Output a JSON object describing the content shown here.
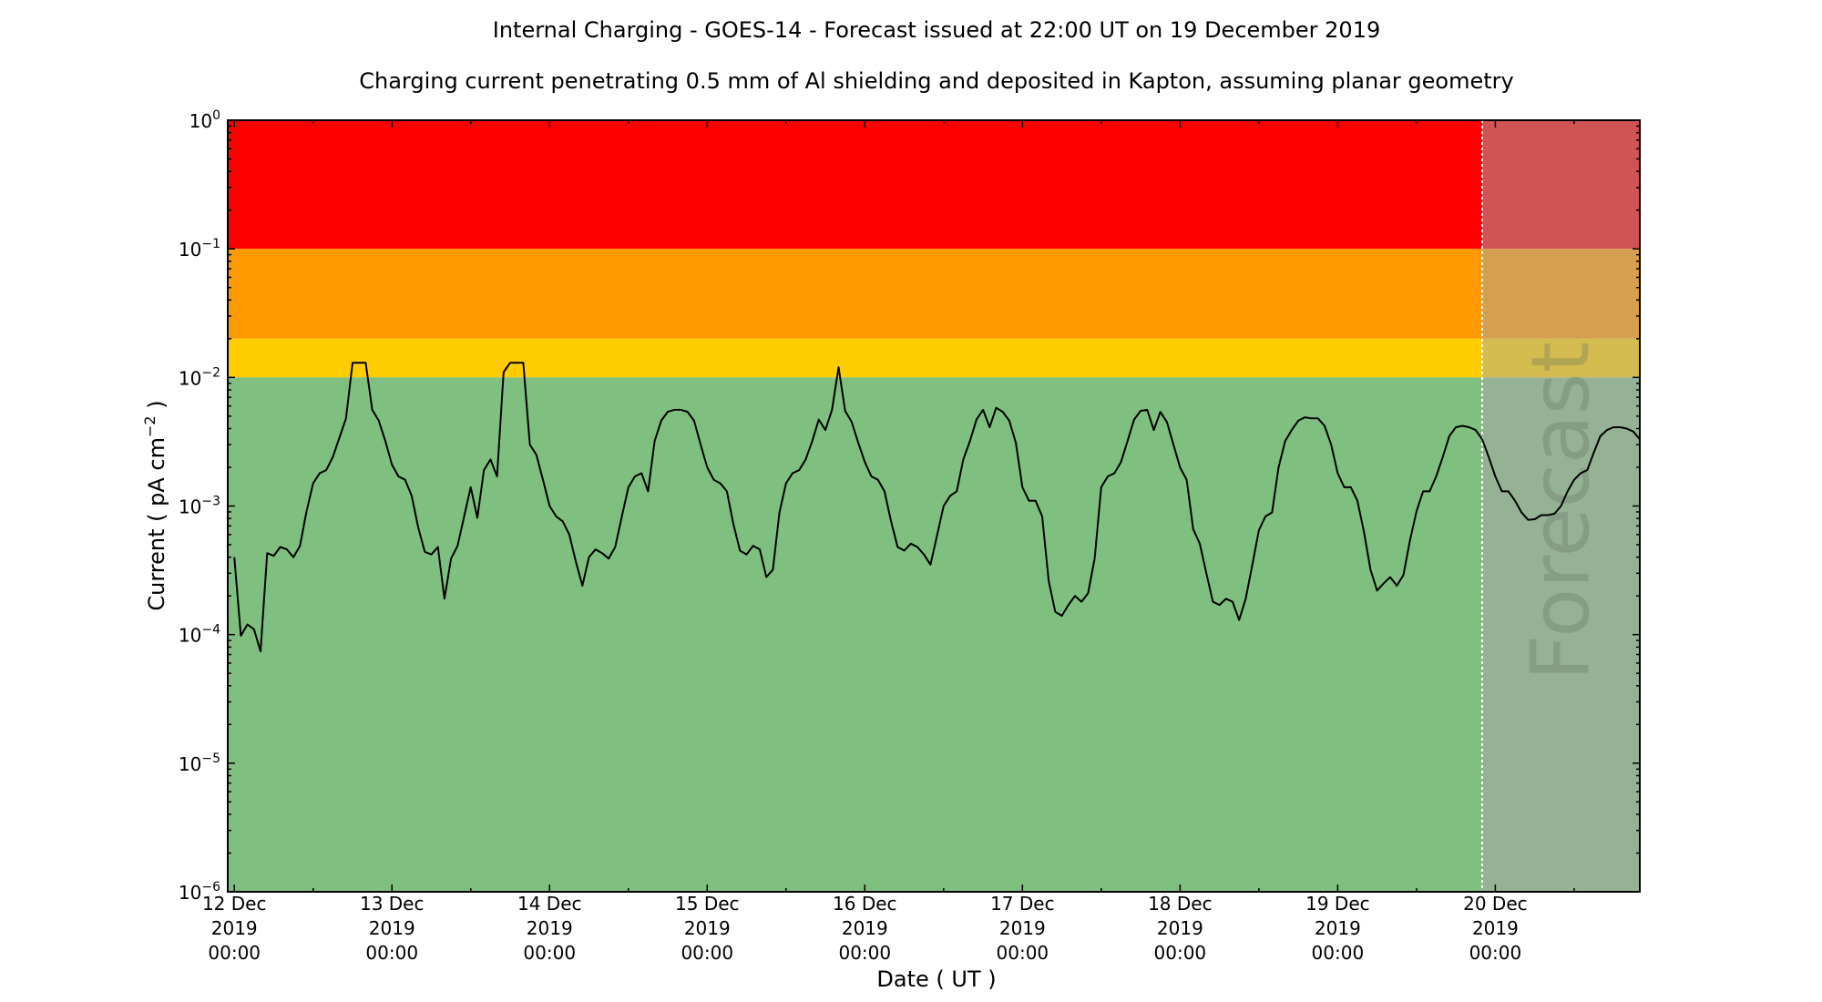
{
  "chart_data": {
    "type": "line",
    "title": "Internal Charging - GOES-14 - Forecast issued at 22:00 UT on 19 December 2019",
    "subtitle": "Charging current penetrating 0.5 mm of Al shielding and deposited in Kapton, assuming planar geometry",
    "xlabel": "Date ( UT )",
    "ylabel": {
      "text": "Current ( pA cm",
      "sup": "−2",
      "close": " )"
    },
    "y_scale": "log",
    "ylim": [
      1e-06,
      1
    ],
    "xlim": [
      "2019-12-11 23:00",
      "2019-12-20 22:00"
    ],
    "grid": false,
    "forecast_start": "2019-12-19 22:00",
    "forecast_label": "Forecast",
    "x_ticks": [
      {
        "date": "2019-12-12",
        "lines": [
          "12 Dec",
          "2019",
          "00:00"
        ]
      },
      {
        "date": "2019-12-13",
        "lines": [
          "13 Dec",
          "2019",
          "00:00"
        ]
      },
      {
        "date": "2019-12-14",
        "lines": [
          "14 Dec",
          "2019",
          "00:00"
        ]
      },
      {
        "date": "2019-12-15",
        "lines": [
          "15 Dec",
          "2019",
          "00:00"
        ]
      },
      {
        "date": "2019-12-16",
        "lines": [
          "16 Dec",
          "2019",
          "00:00"
        ]
      },
      {
        "date": "2019-12-17",
        "lines": [
          "17 Dec",
          "2019",
          "00:00"
        ]
      },
      {
        "date": "2019-12-18",
        "lines": [
          "18 Dec",
          "2019",
          "00:00"
        ]
      },
      {
        "date": "2019-12-19",
        "lines": [
          "19 Dec",
          "2019",
          "00:00"
        ]
      },
      {
        "date": "2019-12-20",
        "lines": [
          "20 Dec",
          "2019",
          "00:00"
        ]
      }
    ],
    "y_ticks": [
      {
        "value": 1,
        "base": "10",
        "exp": "0"
      },
      {
        "value": 0.1,
        "base": "10",
        "exp": "−1"
      },
      {
        "value": 0.01,
        "base": "10",
        "exp": "−2"
      },
      {
        "value": 0.001,
        "base": "10",
        "exp": "−3"
      },
      {
        "value": 0.0001,
        "base": "10",
        "exp": "−4"
      },
      {
        "value": 1e-05,
        "base": "10",
        "exp": "−5"
      },
      {
        "value": 1e-06,
        "base": "10",
        "exp": "−6"
      }
    ],
    "bands": [
      {
        "level": "red",
        "from": 0.1,
        "to": 1,
        "color": "#ff0000",
        "forecast_color": "#d05454"
      },
      {
        "level": "orange",
        "from": 0.02,
        "to": 0.1,
        "color": "#ff9900",
        "forecast_color": "#d4a050"
      },
      {
        "level": "yellow",
        "from": 0.01,
        "to": 0.02,
        "color": "#ffcc00",
        "forecast_color": "#d4bc50"
      },
      {
        "level": "green",
        "from": 1e-06,
        "to": 0.01,
        "color": "#7fbf7f",
        "forecast_color": "#95b294"
      }
    ],
    "line_color": "#000000",
    "series": [
      {
        "date": "2019-12-12",
        "hourly_values": [
          0.0004,
          9.8e-05,
          0.00012,
          0.00011,
          7.4e-05,
          0.00043,
          0.00041,
          0.00048,
          0.00046,
          0.0004,
          0.00049,
          0.00091,
          0.0015,
          0.0018,
          0.0019,
          0.0024,
          0.0034,
          0.0048,
          0.013,
          0.013,
          0.013,
          0.0056,
          0.0046,
          0.0032
        ]
      },
      {
        "date": "2019-12-13",
        "hourly_values": [
          0.0021,
          0.0017,
          0.0016,
          0.0012,
          0.00068,
          0.00044,
          0.00042,
          0.00048,
          0.00019,
          0.00039,
          0.00049,
          0.00083,
          0.0014,
          0.00081,
          0.0019,
          0.0023,
          0.0017,
          0.011,
          0.013,
          0.013,
          0.013,
          0.003,
          0.0025,
          0.0016
        ]
      },
      {
        "date": "2019-12-14",
        "hourly_values": [
          0.001,
          0.00083,
          0.00076,
          0.0006,
          0.00037,
          0.00024,
          0.0004,
          0.00046,
          0.00043,
          0.00039,
          0.00048,
          0.00083,
          0.0014,
          0.0017,
          0.0018,
          0.0013,
          0.0032,
          0.0046,
          0.0054,
          0.0056,
          0.0056,
          0.0054,
          0.0046,
          0.003
        ]
      },
      {
        "date": "2019-12-15",
        "hourly_values": [
          0.002,
          0.0016,
          0.0015,
          0.0013,
          0.00072,
          0.00045,
          0.00042,
          0.00049,
          0.00046,
          0.00028,
          0.00032,
          0.00089,
          0.0015,
          0.0018,
          0.0019,
          0.0023,
          0.0032,
          0.0047,
          0.0039,
          0.0056,
          0.012,
          0.0055,
          0.0045,
          0.0031
        ]
      },
      {
        "date": "2019-12-16",
        "hourly_values": [
          0.0022,
          0.0017,
          0.0016,
          0.0013,
          0.00076,
          0.00048,
          0.00045,
          0.00051,
          0.00048,
          0.00042,
          0.00035,
          0.00059,
          0.001,
          0.0012,
          0.0013,
          0.0023,
          0.0032,
          0.0047,
          0.0056,
          0.0041,
          0.0058,
          0.0054,
          0.0046,
          0.0031
        ]
      },
      {
        "date": "2019-12-17",
        "hourly_values": [
          0.0014,
          0.0011,
          0.0011,
          0.00083,
          0.00026,
          0.00015,
          0.00014,
          0.00017,
          0.0002,
          0.00018,
          0.00021,
          0.00039,
          0.0014,
          0.0017,
          0.0018,
          0.0022,
          0.0032,
          0.0047,
          0.0055,
          0.0056,
          0.0039,
          0.0054,
          0.0045,
          0.003
        ]
      },
      {
        "date": "2019-12-18",
        "hourly_values": [
          0.002,
          0.0016,
          0.00066,
          0.00051,
          0.0003,
          0.00018,
          0.00017,
          0.00019,
          0.00018,
          0.00013,
          0.00019,
          0.00035,
          0.00065,
          0.00083,
          0.00089,
          0.002,
          0.0032,
          0.0039,
          0.0046,
          0.0049,
          0.0048,
          0.0048,
          0.0042,
          0.003
        ]
      },
      {
        "date": "2019-12-19",
        "hourly_values": [
          0.0018,
          0.0014,
          0.0014,
          0.0011,
          0.00063,
          0.00032,
          0.00022,
          0.00025,
          0.00028,
          0.00024,
          0.00029,
          0.00054,
          0.00091,
          0.0013,
          0.0013,
          0.0017,
          0.0024,
          0.0035,
          0.0041,
          0.0042,
          0.0041,
          0.0039,
          0.0033,
          0.0024
        ]
      },
      {
        "date": "2019-12-20",
        "hourly_values": [
          0.0017,
          0.0013,
          0.0013,
          0.0011,
          0.00089,
          0.00078,
          0.00079,
          0.00085,
          0.00085,
          0.00087,
          0.001,
          0.0013,
          0.0016,
          0.0018,
          0.0019,
          0.0026,
          0.0035,
          0.0039,
          0.0041,
          0.0041,
          0.004,
          0.0038,
          0.0033
        ]
      }
    ]
  }
}
